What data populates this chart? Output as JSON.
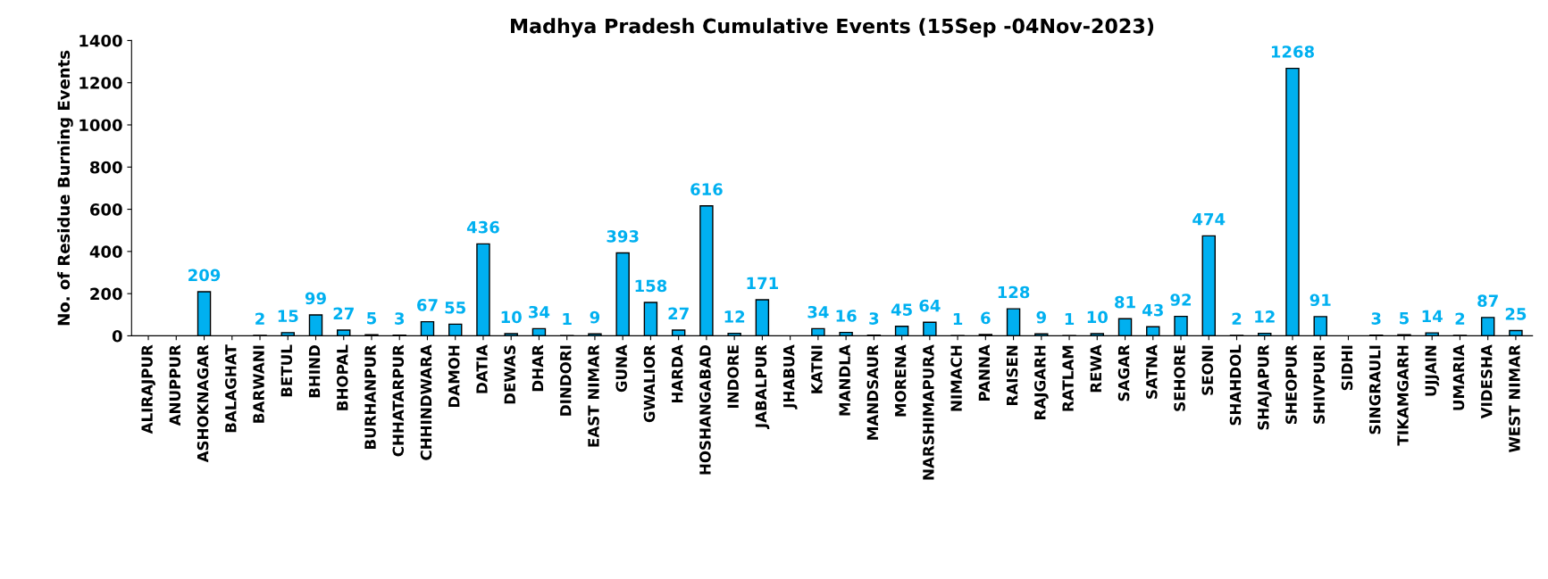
{
  "chart_data": {
    "type": "bar",
    "title": "Madhya Pradesh Cumulative Events (15Sep -04Nov-2023)",
    "ylabel": "No. of Residue Burning Events",
    "categories": [
      "ALIRAJPUR",
      "ANUPPUR",
      "ASHOKNAGAR",
      "BALAGHAT",
      "BARWANI",
      "BETUL",
      "BHIND",
      "BHOPAL",
      "BURHANPUR",
      "CHHATARPUR",
      "CHHINDWARA",
      "DAMOH",
      "DATIA",
      "DEWAS",
      "DHAR",
      "DINDORI",
      "EAST NIMAR",
      "GUNA",
      "GWALIOR",
      "HARDA",
      "HOSHANGABAD",
      "INDORE",
      "JABALPUR",
      "JHABUA",
      "KATNI",
      "MANDLA",
      "MANDSAUR",
      "MORENA",
      "NARSHIMAPURA",
      "NIMACH",
      "PANNA",
      "RAISEN",
      "RAJGARH",
      "RATLAM",
      "REWA",
      "SAGAR",
      "SATNA",
      "SEHORE",
      "SEONI",
      "SHAHDOL",
      "SHAJAPUR",
      "SHEOPUR",
      "SHIVPURI",
      "SIDHI",
      "SINGRAULI",
      "TIKAMGARH",
      "UJJAIN",
      "UMARIA",
      "VIDESHA",
      "WEST NIMAR"
    ],
    "values": [
      null,
      null,
      209,
      null,
      2,
      15,
      99,
      27,
      5,
      3,
      67,
      55,
      436,
      10,
      34,
      1,
      9,
      393,
      158,
      27,
      616,
      12,
      171,
      null,
      34,
      16,
      3,
      45,
      64,
      1,
      6,
      128,
      9,
      1,
      10,
      81,
      43,
      92,
      474,
      2,
      12,
      1268,
      91,
      null,
      3,
      5,
      14,
      2,
      87,
      25
    ],
    "value_labels": [
      null,
      null,
      "209",
      null,
      "2",
      "15",
      "99",
      "27",
      "5",
      "3",
      "67",
      "55",
      "436",
      "10",
      "34",
      "1",
      "9",
      "393",
      "158",
      "27",
      "616",
      "12",
      "171",
      null,
      "34",
      "16",
      "3",
      "45",
      "64",
      "1",
      "6",
      "128",
      "9",
      "1",
      "10",
      "81",
      "43",
      "92",
      "474",
      "2",
      "12",
      "1268",
      "91",
      null,
      "3",
      "5",
      "14",
      "2",
      "87",
      "25"
    ],
    "color": "#00b0f0",
    "ylim": [
      0,
      1400
    ],
    "yticks": [
      0,
      200,
      400,
      600,
      800,
      1000,
      1200,
      1400
    ],
    "grid": false,
    "legend": false
  }
}
